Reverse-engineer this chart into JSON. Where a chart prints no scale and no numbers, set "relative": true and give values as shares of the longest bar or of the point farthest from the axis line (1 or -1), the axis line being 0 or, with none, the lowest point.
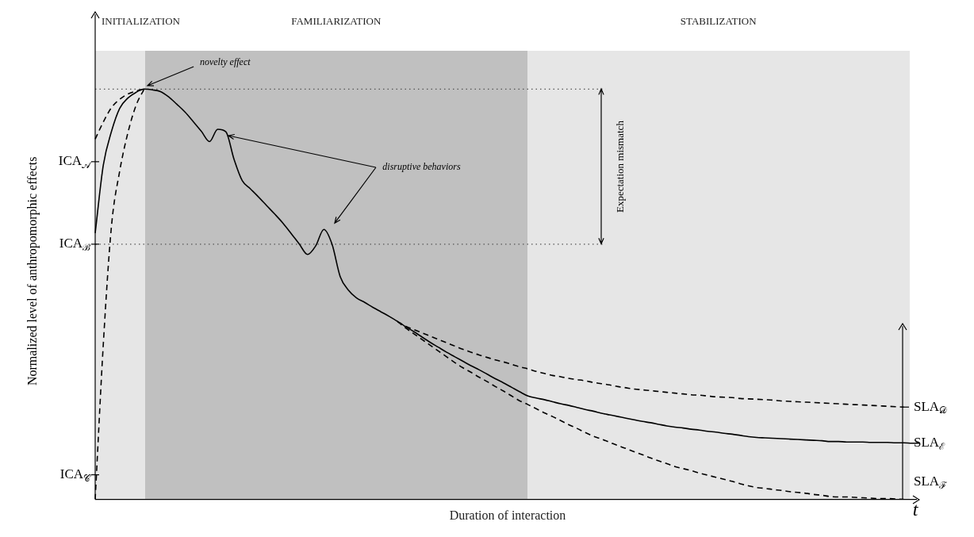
{
  "chart_data": {
    "type": "line",
    "relative": true,
    "xlabel": "Duration of interaction",
    "ylabel": "Normalized level of anthropomorphic effects",
    "marker": "none",
    "categories": [
      null,
      null,
      null,
      null,
      null,
      null,
      null,
      null,
      null,
      null,
      null,
      null,
      null,
      null,
      null,
      null,
      null,
      null,
      null,
      null,
      null,
      null,
      null,
      null,
      null,
      null,
      null,
      null,
      null,
      null,
      null,
      null,
      null,
      null,
      null,
      null,
      null,
      null,
      null,
      null,
      null,
      null,
      null,
      null,
      null,
      null,
      null,
      null,
      null,
      null,
      null,
      null,
      null,
      null,
      null,
      null,
      null,
      null,
      null,
      null,
      null,
      null,
      null,
      null,
      null,
      null,
      null,
      null,
      null,
      null,
      null,
      null,
      null,
      null,
      null,
      null,
      null,
      null,
      null,
      null,
      null,
      null,
      null,
      null,
      null,
      null,
      null,
      null,
      null,
      null,
      null,
      null,
      null,
      null,
      null,
      null,
      null,
      null,
      null,
      null,
      null,
      null
    ],
    "series": [
      {
        "color": "#000000",
        "line_style": "solid",
        "values": [
          0.649,
          0.815,
          0.897,
          0.953,
          0.978,
          0.992,
          1.0,
          0.998,
          0.994,
          0.981,
          0.963,
          0.944,
          0.921,
          0.897,
          0.872,
          0.902,
          0.896,
          0.829,
          0.777,
          0.757,
          0.737,
          0.716,
          0.695,
          0.673,
          0.648,
          0.622,
          0.597,
          0.618,
          0.658,
          0.622,
          0.543,
          0.51,
          0.491,
          0.48,
          0.468,
          0.457,
          0.446,
          0.434,
          0.421,
          0.409,
          0.396,
          0.383,
          0.371,
          0.359,
          0.348,
          0.337,
          0.326,
          0.316,
          0.305,
          0.294,
          0.284,
          0.273,
          0.262,
          0.252,
          0.247,
          0.243,
          0.238,
          0.233,
          0.229,
          0.224,
          0.219,
          0.215,
          0.21,
          0.206,
          0.202,
          0.198,
          0.194,
          0.19,
          0.187,
          0.183,
          0.179,
          0.176,
          0.174,
          0.171,
          0.169,
          0.166,
          0.164,
          0.161,
          0.159,
          0.156,
          0.153,
          0.151,
          0.15,
          0.149,
          0.148,
          0.147,
          0.146,
          0.145,
          0.144,
          0.143,
          0.141,
          0.141,
          0.14,
          0.14,
          0.14,
          0.139,
          0.139,
          0.139,
          0.138,
          0.138,
          0.137,
          0.137
        ]
      },
      {
        "color": "#000000",
        "line_style": "dashed",
        "values": [
          0.878,
          0.92,
          0.955,
          0.975,
          0.988,
          0.995,
          1.0,
          null,
          null,
          null,
          null,
          null,
          null,
          null,
          null,
          null,
          null,
          null,
          null,
          null,
          null,
          null,
          null,
          null,
          null,
          null,
          null,
          null,
          null,
          null,
          null,
          null,
          null,
          null,
          null,
          null,
          null,
          null,
          null,
          null,
          null,
          null,
          null,
          null,
          null,
          null,
          null,
          null,
          null,
          null,
          null,
          null,
          null,
          null,
          null,
          null,
          null,
          null,
          null,
          null,
          null,
          null,
          null,
          null,
          null,
          null,
          null,
          null,
          null,
          null,
          null,
          null,
          null,
          null,
          null,
          null,
          null,
          null,
          null,
          null,
          null,
          null,
          null,
          null,
          null,
          null,
          null,
          null,
          null,
          null,
          null,
          null,
          null,
          null,
          null,
          null,
          null,
          null,
          null,
          null,
          null,
          null
        ]
      },
      {
        "color": "#000000",
        "line_style": "dashed",
        "values": [
          0,
          0.38,
          0.667,
          0.8,
          0.893,
          0.96,
          1.0,
          null,
          null,
          null,
          null,
          null,
          null,
          null,
          null,
          null,
          null,
          null,
          null,
          null,
          null,
          null,
          null,
          null,
          null,
          null,
          null,
          null,
          null,
          null,
          null,
          null,
          null,
          null,
          null,
          null,
          null,
          null,
          null,
          null,
          null,
          null,
          null,
          null,
          null,
          null,
          null,
          null,
          null,
          null,
          null,
          null,
          null,
          null,
          null,
          null,
          null,
          null,
          null,
          null,
          null,
          null,
          null,
          null,
          null,
          null,
          null,
          null,
          null,
          null,
          null,
          null,
          null,
          null,
          null,
          null,
          null,
          null,
          null,
          null,
          null,
          null,
          null,
          null,
          null,
          null,
          null,
          null,
          null,
          null,
          null,
          null,
          null,
          null,
          null,
          null,
          null,
          null,
          null,
          null,
          null,
          null
        ]
      },
      {
        "color": "#000000",
        "line_style": "dashed",
        "values": [
          null,
          null,
          null,
          null,
          null,
          null,
          null,
          null,
          null,
          null,
          null,
          null,
          null,
          null,
          null,
          null,
          null,
          null,
          null,
          null,
          null,
          null,
          null,
          null,
          null,
          null,
          null,
          null,
          null,
          null,
          null,
          null,
          null,
          null,
          null,
          null,
          null,
          0.434,
          0.422,
          0.414,
          0.406,
          0.398,
          0.39,
          0.382,
          0.374,
          0.366,
          0.359,
          0.352,
          0.346,
          0.34,
          0.335,
          0.329,
          0.323,
          0.318,
          0.312,
          0.307,
          0.302,
          0.299,
          0.295,
          0.292,
          0.289,
          0.285,
          0.282,
          0.279,
          0.275,
          0.272,
          0.269,
          0.267,
          0.265,
          0.263,
          0.261,
          0.259,
          0.257,
          0.255,
          0.254,
          0.252,
          0.25,
          0.249,
          0.248,
          0.246,
          0.245,
          0.244,
          0.243,
          0.242,
          0.24,
          0.239,
          0.238,
          0.237,
          0.236,
          0.235,
          0.234,
          0.233,
          0.232,
          0.231,
          0.23,
          0.229,
          0.228,
          0.227,
          0.226,
          0.225,
          null,
          null
        ]
      },
      {
        "color": "#000000",
        "line_style": "dashed",
        "values": [
          null,
          null,
          null,
          null,
          null,
          null,
          null,
          null,
          null,
          null,
          null,
          null,
          null,
          null,
          null,
          null,
          null,
          null,
          null,
          null,
          null,
          null,
          null,
          null,
          null,
          null,
          null,
          null,
          null,
          null,
          null,
          null,
          null,
          null,
          null,
          null,
          null,
          0.434,
          0.418,
          0.404,
          0.39,
          0.376,
          0.362,
          0.348,
          0.334,
          0.321,
          0.31,
          0.298,
          0.287,
          0.275,
          0.264,
          0.252,
          0.24,
          0.231,
          0.221,
          0.211,
          0.202,
          0.192,
          0.182,
          0.173,
          0.163,
          0.154,
          0.147,
          0.139,
          0.131,
          0.124,
          0.116,
          0.109,
          0.101,
          0.094,
          0.087,
          0.08,
          0.075,
          0.07,
          0.064,
          0.059,
          0.054,
          0.049,
          0.044,
          0.038,
          0.033,
          0.029,
          0.027,
          0.024,
          0.022,
          0.019,
          0.017,
          0.015,
          0.012,
          0.01,
          0.007,
          0.006,
          0.006,
          0.005,
          0.004,
          0.003,
          0.002,
          0.002,
          0.001,
          0,
          null,
          null
        ]
      }
    ],
    "ref_lines": [
      {
        "axis": "y",
        "value": 1.0,
        "line_style": "dotted",
        "color": "#555555"
      },
      {
        "axis": "y",
        "value": 0.622,
        "line_style": "dotted",
        "color": "#555555"
      }
    ],
    "annotations": [
      "INITIALIZATION",
      "FAMILIARIZATION",
      "STABILIZATION",
      "ICA$_{𝒜}$",
      "ICA$_{ℬ}$",
      "ICA$_{𝒞}$",
      "SLA$_{𝒟}$",
      "SLA$_{ℰ}$",
      "SLA$_{ℱ}$",
      {
        "text": "novelty effect",
        "y": 1.0
      },
      "disruptive behaviors",
      "Expectation mismatch",
      "t"
    ]
  }
}
